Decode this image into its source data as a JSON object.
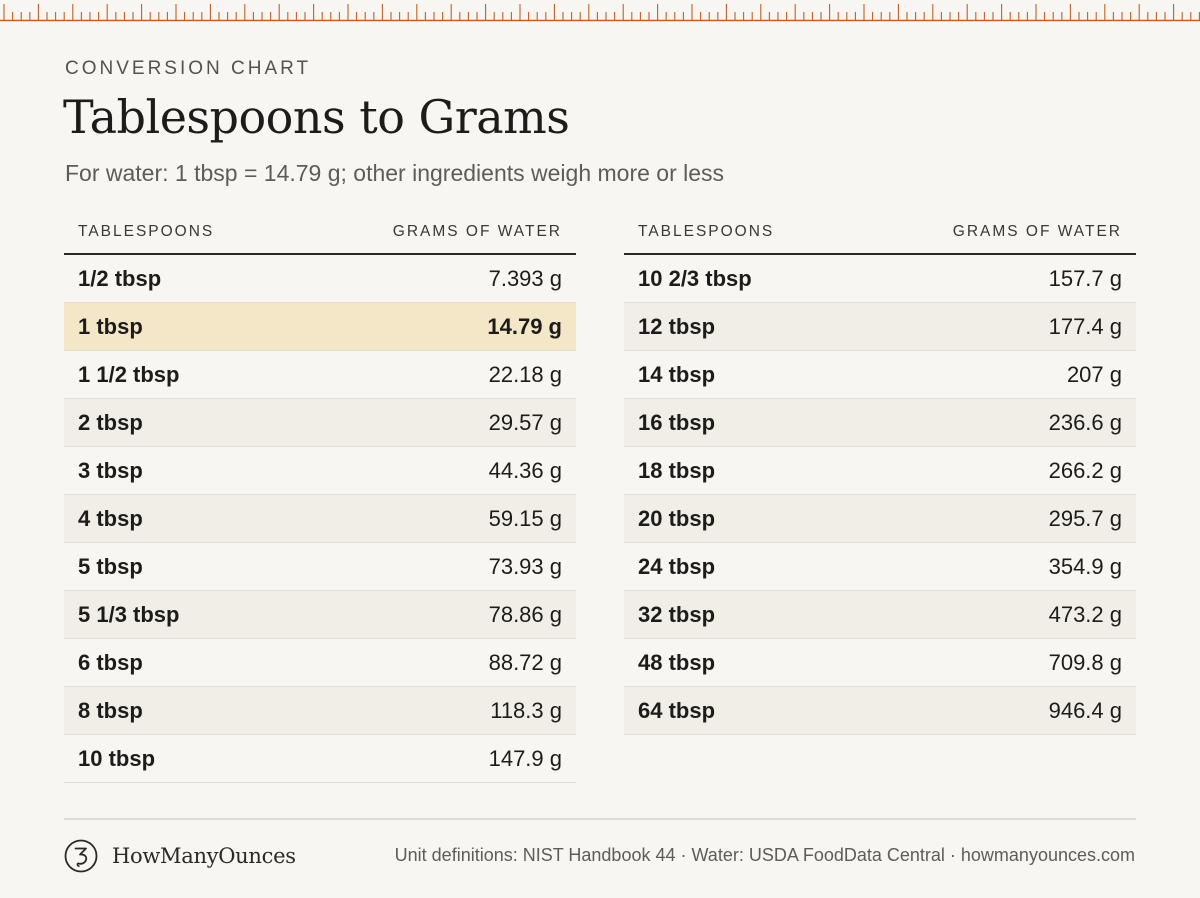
{
  "header": {
    "eyebrow": "CONVERSION CHART",
    "title": "Tablespoons to Grams",
    "subtitle": "For water: 1 tbsp = 14.79 g; other ingredients weigh more or less"
  },
  "colors": {
    "accent": "#c0612b",
    "highlight": "#f4e7c7",
    "zebra": "#f1eee8",
    "background": "#f8f6f2"
  },
  "table_left": {
    "col1": "TABLESPOONS",
    "col2": "GRAMS OF WATER",
    "highlight_row": 1,
    "rows": [
      {
        "tbsp": "1/2 tbsp",
        "grams": "7.393 g"
      },
      {
        "tbsp": "1 tbsp",
        "grams": "14.79 g"
      },
      {
        "tbsp": "1 1/2 tbsp",
        "grams": "22.18 g"
      },
      {
        "tbsp": "2 tbsp",
        "grams": "29.57 g"
      },
      {
        "tbsp": "3 tbsp",
        "grams": "44.36 g"
      },
      {
        "tbsp": "4 tbsp",
        "grams": "59.15 g"
      },
      {
        "tbsp": "5 tbsp",
        "grams": "73.93 g"
      },
      {
        "tbsp": "5 1/3 tbsp",
        "grams": "78.86 g"
      },
      {
        "tbsp": "6 tbsp",
        "grams": "88.72 g"
      },
      {
        "tbsp": "8 tbsp",
        "grams": "118.3 g"
      },
      {
        "tbsp": "10 tbsp",
        "grams": "147.9 g"
      }
    ]
  },
  "table_right": {
    "col1": "TABLESPOONS",
    "col2": "GRAMS OF WATER",
    "rows": [
      {
        "tbsp": "10 2/3 tbsp",
        "grams": "157.7 g"
      },
      {
        "tbsp": "12 tbsp",
        "grams": "177.4 g"
      },
      {
        "tbsp": "14 tbsp",
        "grams": "207 g"
      },
      {
        "tbsp": "16 tbsp",
        "grams": "236.6 g"
      },
      {
        "tbsp": "18 tbsp",
        "grams": "266.2 g"
      },
      {
        "tbsp": "20 tbsp",
        "grams": "295.7 g"
      },
      {
        "tbsp": "24 tbsp",
        "grams": "354.9 g"
      },
      {
        "tbsp": "32 tbsp",
        "grams": "473.2 g"
      },
      {
        "tbsp": "48 tbsp",
        "grams": "709.8 g"
      },
      {
        "tbsp": "64 tbsp",
        "grams": "946.4 g"
      }
    ]
  },
  "footer": {
    "brand_name": "HowManyOunces",
    "logo_icon": "spiral-3-logo-icon",
    "source": "Unit definitions: NIST Handbook 44 · Water: USDA FoodData Central · howmanyounces.com"
  }
}
